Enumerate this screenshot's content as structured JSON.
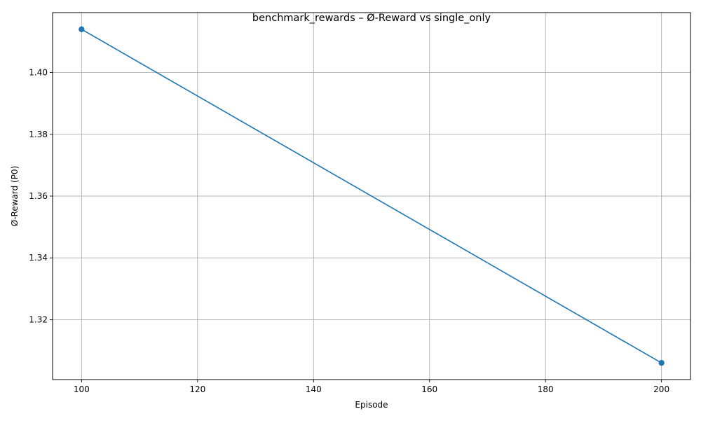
{
  "chart_data": {
    "type": "line",
    "title": "benchmark_rewards – Ø-Reward vs single_only",
    "xlabel": "Episode",
    "ylabel": "Ø-Reward (P0)",
    "x": [
      100,
      200
    ],
    "series": [
      {
        "values": [
          1.414,
          1.306
        ]
      }
    ],
    "xlim": [
      95,
      205
    ],
    "ylim": [
      1.3006,
      1.4194
    ],
    "xticks": [
      100,
      120,
      140,
      160,
      180,
      200
    ],
    "yticks": [
      1.32,
      1.34,
      1.36,
      1.38,
      1.4
    ],
    "xtick_labels": [
      "100",
      "120",
      "140",
      "160",
      "180",
      "200"
    ],
    "ytick_labels": [
      "1.32",
      "1.34",
      "1.36",
      "1.38",
      "1.40"
    ],
    "grid": true,
    "markers": true,
    "line_color": "#1f77b4"
  }
}
